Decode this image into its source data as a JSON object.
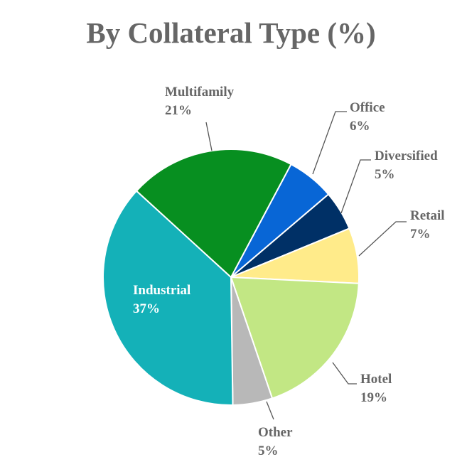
{
  "chart_data": {
    "type": "pie",
    "title": "By Collateral Type (%)",
    "categories": [
      "Office",
      "Diversified",
      "Retail",
      "Hotel",
      "Other",
      "Industrial",
      "Multifamily"
    ],
    "values": [
      6,
      5,
      7,
      19,
      5,
      37,
      21
    ],
    "value_labels": [
      "6%",
      "5%",
      "7%",
      "19%",
      "5%",
      "37%",
      "21%"
    ],
    "colors": [
      "#0866d6",
      "#003066",
      "#ffeb8a",
      "#c2e784",
      "#b8b8b8",
      "#14b1b8",
      "#078f20"
    ]
  }
}
